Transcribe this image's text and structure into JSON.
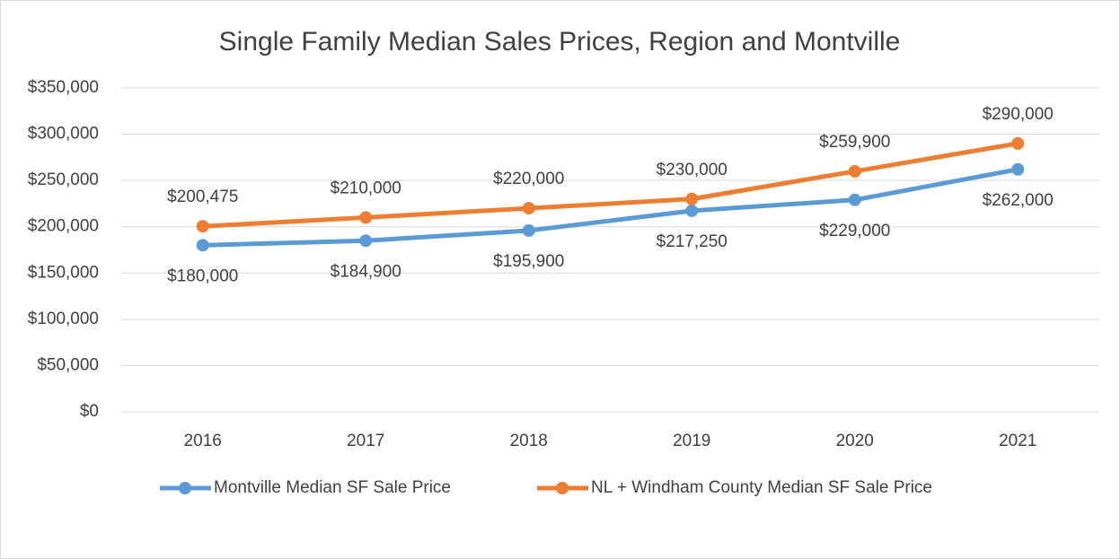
{
  "chart_data": {
    "type": "line",
    "title": "Single Family Median Sales Prices, Region and Montville",
    "categories": [
      "2016",
      "2017",
      "2018",
      "2019",
      "2020",
      "2021"
    ],
    "series": [
      {
        "name": "Montville Median SF Sale Price",
        "color": "#5b9bd5",
        "values": [
          180000,
          184900,
          195900,
          217250,
          229000,
          262000
        ],
        "value_labels": [
          "$180,000",
          "$184,900",
          "$195,900",
          "$217,250",
          "$229,000",
          "$262,000"
        ]
      },
      {
        "name": "NL + Windham County Median SF Sale Price",
        "color": "#ed7d31",
        "values": [
          200475,
          210000,
          220000,
          230000,
          259900,
          290000
        ],
        "value_labels": [
          "$200,475",
          "$210,000",
          "$220,000",
          "$230,000",
          "$259,900",
          "$290,000"
        ]
      }
    ],
    "ylim": [
      0,
      350000
    ],
    "yticks": [
      {
        "value": 0,
        "label": "$0"
      },
      {
        "value": 50000,
        "label": "$50,000"
      },
      {
        "value": 100000,
        "label": "$100,000"
      },
      {
        "value": 150000,
        "label": "$150,000"
      },
      {
        "value": 200000,
        "label": "$200,000"
      },
      {
        "value": 250000,
        "label": "$250,000"
      },
      {
        "value": 300000,
        "label": "$300,000"
      },
      {
        "value": 350000,
        "label": "$350,000"
      }
    ],
    "grid": true,
    "legend": "bottom"
  }
}
